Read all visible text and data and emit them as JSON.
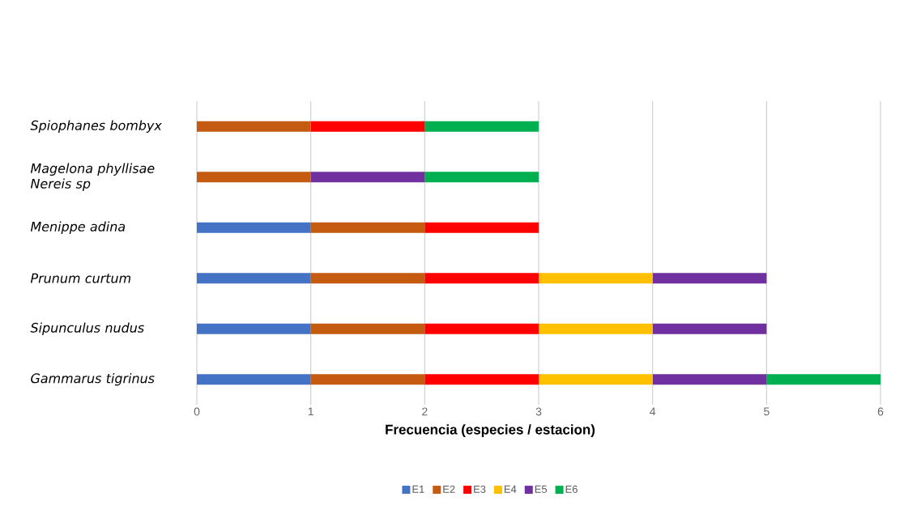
{
  "chart_data": {
    "type": "bar",
    "orientation": "horizontal",
    "stacked": true,
    "categories": [
      "Spiophanes bombyx",
      "Magelona phyllisae Nereis sp",
      "Menippe adina",
      "Prunum curtum",
      "Sipunculus nudus",
      "Gammarus tigrinus"
    ],
    "series": [
      {
        "name": "E1",
        "color": "#4472c4",
        "values": [
          0,
          0,
          1,
          1,
          1,
          1
        ]
      },
      {
        "name": "E2",
        "color": "#c55a11",
        "values": [
          1,
          1,
          1,
          1,
          1,
          1
        ]
      },
      {
        "name": "E3",
        "color": "#ff0000",
        "values": [
          1,
          0,
          1,
          1,
          1,
          1
        ]
      },
      {
        "name": "E4",
        "color": "#ffc000",
        "values": [
          0,
          0,
          0,
          1,
          1,
          1
        ]
      },
      {
        "name": "E5",
        "color": "#7030a0",
        "values": [
          0,
          1,
          0,
          1,
          1,
          1
        ]
      },
      {
        "name": "E6",
        "color": "#00b050",
        "values": [
          1,
          1,
          0,
          0,
          0,
          1
        ]
      }
    ],
    "xlabel": "Frecuencia (especies / estacion)",
    "xlim": [
      0,
      6
    ],
    "xticks": [
      0,
      1,
      2,
      3,
      4,
      5,
      6
    ],
    "grid": "x",
    "legend": "bottom"
  }
}
